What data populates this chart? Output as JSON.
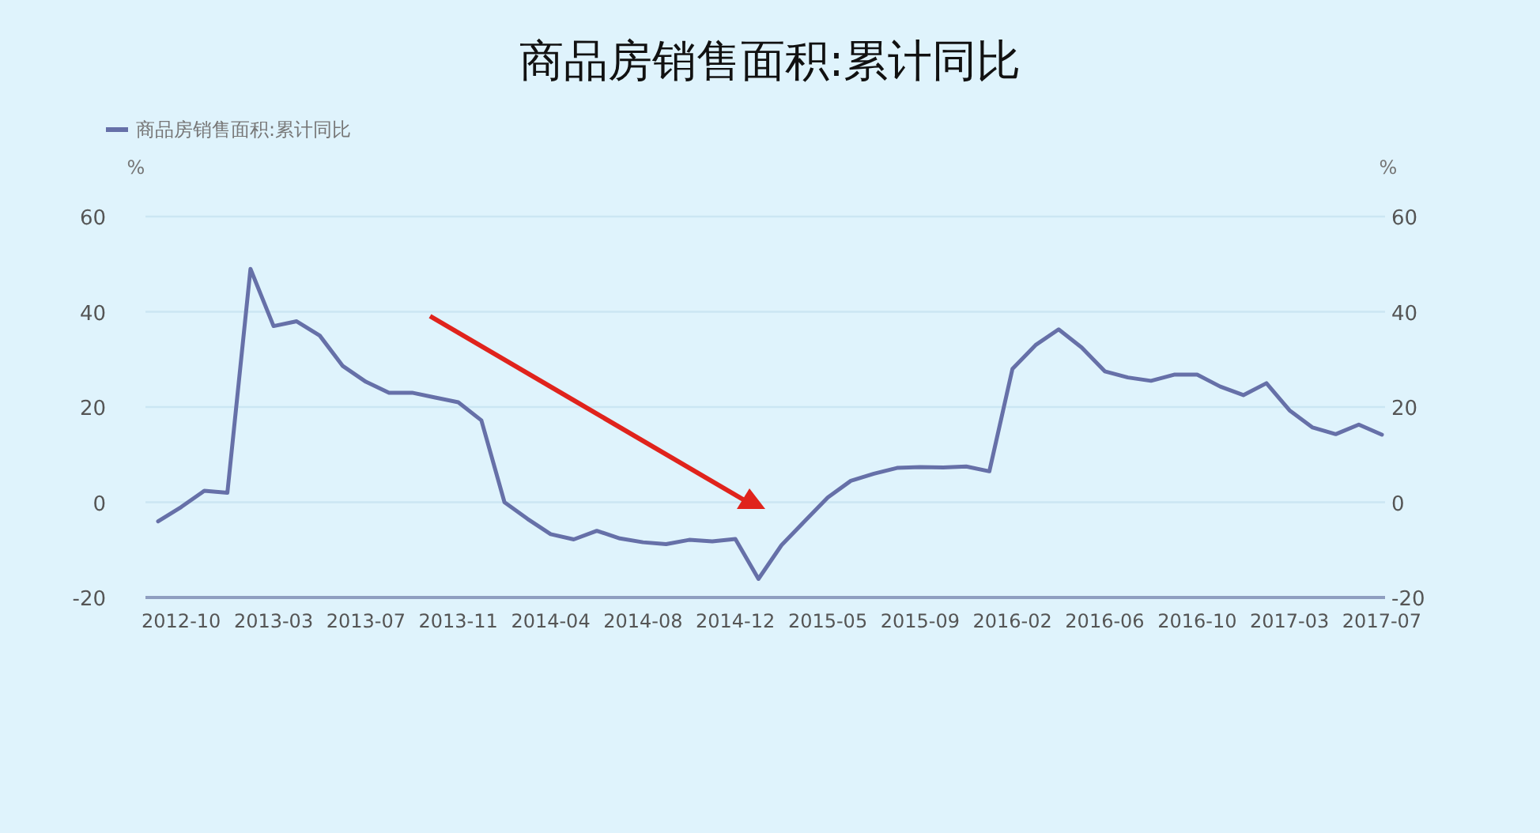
{
  "chart_data": {
    "type": "line",
    "title": "商品房销售面积:累计同比",
    "ylabel": "%",
    "y2label": "%",
    "categories": [
      null,
      "2012-10",
      null,
      null,
      null,
      "2013-03",
      null,
      null,
      null,
      "2013-07",
      null,
      null,
      null,
      "2013-11",
      null,
      null,
      null,
      "2014-04",
      null,
      null,
      null,
      "2014-08",
      null,
      null,
      null,
      "2014-12",
      null,
      null,
      null,
      "2015-05",
      null,
      null,
      null,
      "2015-09",
      null,
      null,
      null,
      "2016-02",
      null,
      null,
      null,
      "2016-06",
      null,
      null,
      null,
      "2016-10",
      null,
      null,
      null,
      "2017-03",
      null,
      null,
      null,
      "2017-07"
    ],
    "series": [
      {
        "name": "商品房销售面积:累计同比",
        "color": "#6670a8",
        "values": [
          -4,
          -1,
          2.4,
          2,
          49,
          37,
          38,
          35,
          28.6,
          25.3,
          23,
          23,
          22,
          21,
          17.2,
          0,
          -3.5,
          -6.7,
          -7.8,
          -6,
          -7.6,
          -8.4,
          -8.8,
          -7.9,
          -8.2,
          -7.7,
          -16.1,
          -9,
          -4,
          1,
          4.5,
          6,
          7.2,
          7.4,
          7.3,
          7.5,
          6.5,
          28,
          33,
          36.3,
          32.5,
          27.5,
          26.2,
          25.5,
          26.8,
          26.8,
          24.3,
          22.5,
          25,
          19.3,
          15.7,
          14.3,
          16.3,
          14.2
        ]
      }
    ],
    "ylim": [
      -20,
      60
    ],
    "yticks": [
      -20,
      0,
      20,
      40,
      60
    ],
    "y2lim": [
      -20,
      60
    ],
    "y2ticks": [
      -20,
      0,
      20,
      40,
      60
    ],
    "grid": "y",
    "legend": "top left",
    "marker": "none",
    "line_style": "solid"
  }
}
